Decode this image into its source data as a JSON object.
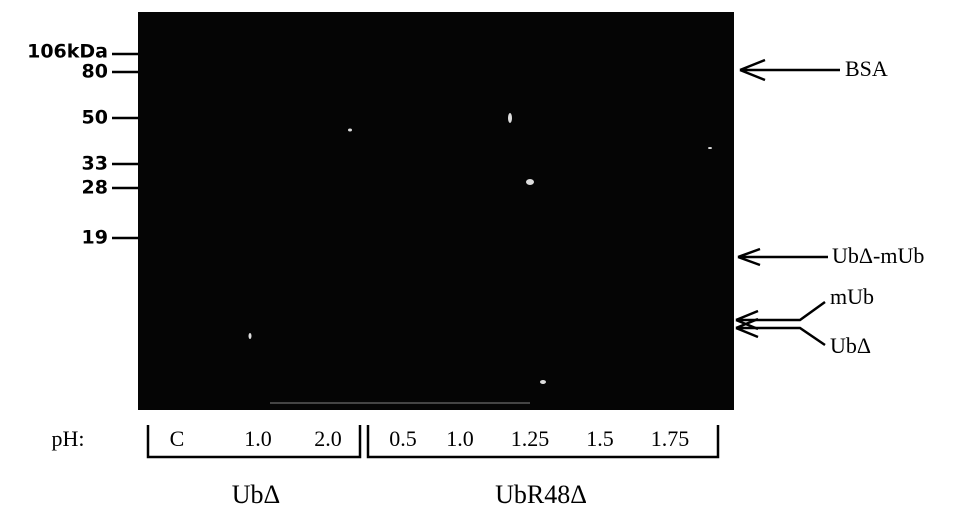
{
  "markers": [
    "106kDa",
    "80",
    "50",
    "33",
    "28",
    "19"
  ],
  "annotations": [
    "BSA",
    "UbΔ-mUb",
    "mUb",
    "UbΔ"
  ],
  "ph_label": "pH:",
  "lanes": [
    "C",
    "1.0",
    "2.0",
    "0.5",
    "1.0",
    "1.25",
    "1.5",
    "1.75"
  ],
  "groups": [
    "UbΔ",
    "UbR48Δ"
  ]
}
